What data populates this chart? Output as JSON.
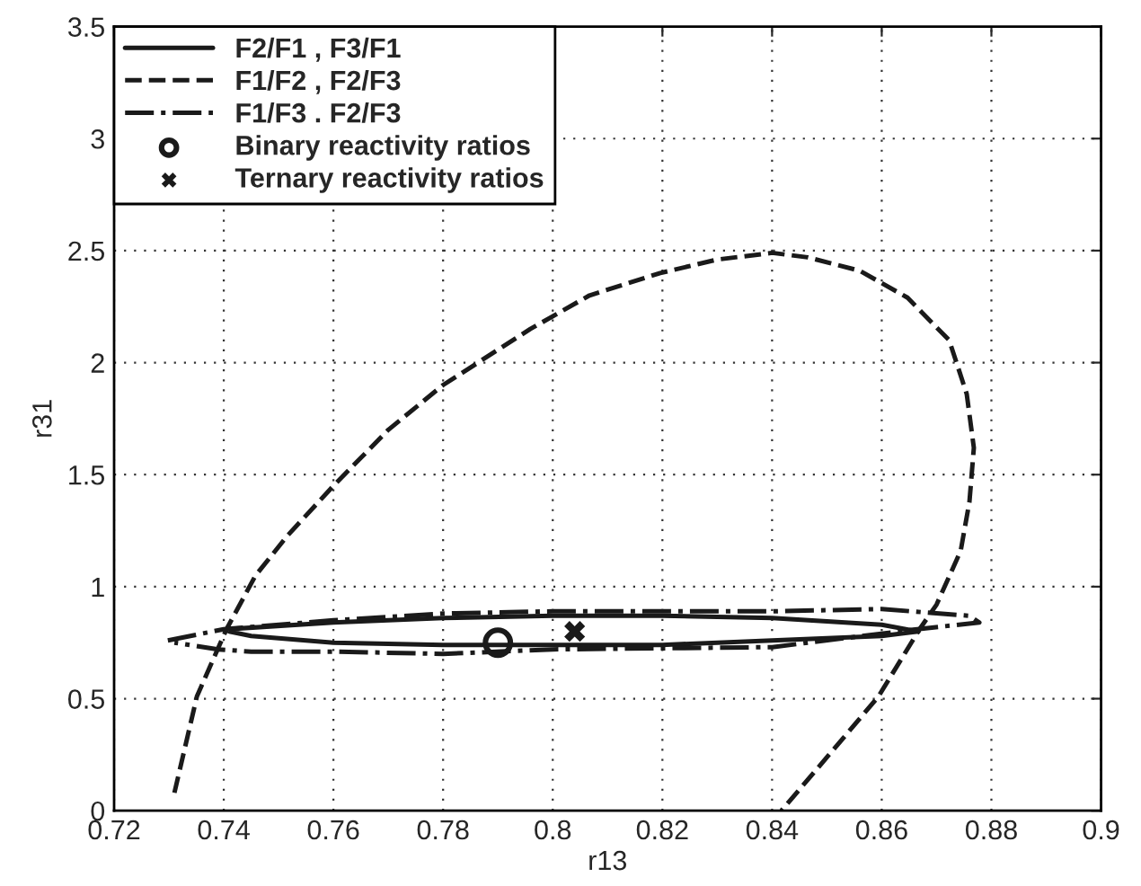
{
  "chart_data": {
    "type": "line",
    "xlabel": "r13",
    "ylabel": "r31",
    "xlim": [
      0.72,
      0.9
    ],
    "ylim": [
      0,
      3.5
    ],
    "xticks": [
      0.72,
      0.74,
      0.76,
      0.78,
      0.8,
      0.82,
      0.84,
      0.86,
      0.88,
      0.9
    ],
    "yticks": [
      0,
      0.5,
      1,
      1.5,
      2,
      2.5,
      3,
      3.5
    ],
    "grid": true,
    "legend": "top left",
    "series": [
      {
        "name": "F2/F1 , F3/F1",
        "type": "line",
        "line_style": "solid",
        "color": "#1a1a1a",
        "x": [
          0.7405,
          0.76,
          0.78,
          0.8,
          0.82,
          0.84,
          0.86,
          0.8667,
          0.86,
          0.84,
          0.82,
          0.8,
          0.78,
          0.76,
          0.745,
          0.741
        ],
        "values": [
          0.81,
          0.84,
          0.86,
          0.87,
          0.87,
          0.86,
          0.83,
          0.8,
          0.78,
          0.76,
          0.74,
          0.74,
          0.74,
          0.75,
          0.78,
          0.8
        ]
      },
      {
        "name": "F1/F2 , F2/F3",
        "type": "line",
        "line_style": "dashed",
        "color": "#1a1a1a",
        "x": [
          0.731,
          0.7351,
          0.7405,
          0.7458,
          0.7517,
          0.76,
          0.77,
          0.78,
          0.7959,
          0.8067,
          0.8196,
          0.83,
          0.84,
          0.8465,
          0.856,
          0.8647,
          0.8723,
          0.8755,
          0.8768,
          0.876,
          0.8744,
          0.87,
          0.8669,
          0.8594,
          0.8511,
          0.8417
        ],
        "values": [
          0.08,
          0.51,
          0.81,
          1.05,
          1.23,
          1.45,
          1.7,
          1.9,
          2.15,
          2.3,
          2.4,
          2.46,
          2.49,
          2.47,
          2.41,
          2.29,
          2.1,
          1.86,
          1.62,
          1.38,
          1.16,
          0.92,
          0.81,
          0.51,
          0.27,
          0
        ]
      },
      {
        "name": "F1/F3 . F2/F3",
        "type": "line",
        "line_style": "dashdot",
        "color": "#1a1a1a",
        "x": [
          0.7298,
          0.74,
          0.76,
          0.78,
          0.8,
          0.84,
          0.86,
          0.876,
          0.8778,
          0.8665,
          0.84,
          0.8,
          0.78,
          0.76,
          0.745,
          0.739,
          0.731
        ],
        "values": [
          0.76,
          0.81,
          0.85,
          0.88,
          0.89,
          0.89,
          0.9,
          0.87,
          0.84,
          0.81,
          0.73,
          0.72,
          0.7,
          0.71,
          0.71,
          0.72,
          0.75
        ]
      },
      {
        "name": "Binary reactivity ratios",
        "type": "scatter",
        "marker": "circle",
        "color": "#1a1a1a",
        "x": [
          0.79
        ],
        "values": [
          0.75
        ]
      },
      {
        "name": "Ternary reactivity ratios",
        "type": "scatter",
        "marker": "cross",
        "color": "#1a1a1a",
        "x": [
          0.804
        ],
        "values": [
          0.8
        ]
      }
    ]
  }
}
